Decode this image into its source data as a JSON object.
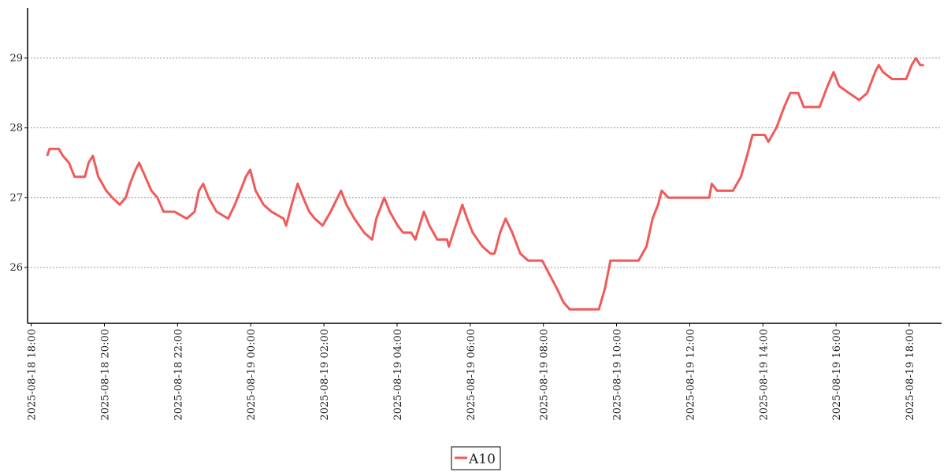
{
  "chart_data": {
    "type": "line",
    "x": [
      "2025-08-18 18:26",
      "2025-08-18 18:30",
      "2025-08-18 18:45",
      "2025-08-18 18:52",
      "2025-08-18 19:02",
      "2025-08-18 19:11",
      "2025-08-18 19:28",
      "2025-08-18 19:34",
      "2025-08-18 19:41",
      "2025-08-18 19:50",
      "2025-08-18 20:03",
      "2025-08-18 20:13",
      "2025-08-18 20:25",
      "2025-08-18 20:35",
      "2025-08-18 20:42",
      "2025-08-18 20:51",
      "2025-08-18 20:57",
      "2025-08-18 21:07",
      "2025-08-18 21:17",
      "2025-08-18 21:27",
      "2025-08-18 21:37",
      "2025-08-18 21:55",
      "2025-08-18 22:15",
      "2025-08-18 22:28",
      "2025-08-18 22:35",
      "2025-08-18 22:42",
      "2025-08-18 22:51",
      "2025-08-18 23:04",
      "2025-08-18 23:23",
      "2025-08-18 23:34",
      "2025-08-18 23:43",
      "2025-08-18 23:52",
      "2025-08-18 23:59",
      "2025-08-19 00:08",
      "2025-08-19 00:21",
      "2025-08-19 00:34",
      "2025-08-19 00:54",
      "2025-08-19 00:58",
      "2025-08-19 01:07",
      "2025-08-19 01:17",
      "2025-08-19 01:26",
      "2025-08-19 01:36",
      "2025-08-19 01:45",
      "2025-08-19 01:58",
      "2025-08-19 02:11",
      "2025-08-19 02:28",
      "2025-08-19 02:37",
      "2025-08-19 02:50",
      "2025-08-19 03:06",
      "2025-08-19 03:19",
      "2025-08-19 03:26",
      "2025-08-19 03:39",
      "2025-08-19 03:48",
      "2025-08-19 04:01",
      "2025-08-19 04:10",
      "2025-08-19 04:23",
      "2025-08-19 04:30",
      "2025-08-19 04:37",
      "2025-08-19 04:44",
      "2025-08-19 04:53",
      "2025-08-19 05:06",
      "2025-08-19 05:22",
      "2025-08-19 05:25",
      "2025-08-19 05:36",
      "2025-08-19 05:47",
      "2025-08-19 05:55",
      "2025-08-19 06:04",
      "2025-08-19 06:20",
      "2025-08-19 06:33",
      "2025-08-19 06:40",
      "2025-08-19 06:49",
      "2025-08-19 06:58",
      "2025-08-19 07:09",
      "2025-08-19 07:22",
      "2025-08-19 07:35",
      "2025-08-19 07:58",
      "2025-08-19 08:10",
      "2025-08-19 08:22",
      "2025-08-19 08:33",
      "2025-08-19 08:43",
      "2025-08-19 09:31",
      "2025-08-19 09:41",
      "2025-08-19 09:50",
      "2025-08-19 10:36",
      "2025-08-19 10:49",
      "2025-08-19 10:59",
      "2025-08-19 11:08",
      "2025-08-19 11:14",
      "2025-08-19 11:25",
      "2025-08-19 12:32",
      "2025-08-19 12:36",
      "2025-08-19 12:45",
      "2025-08-19 13:11",
      "2025-08-19 13:24",
      "2025-08-19 13:34",
      "2025-08-19 13:43",
      "2025-08-19 14:03",
      "2025-08-19 14:09",
      "2025-08-19 14:22",
      "2025-08-19 14:35",
      "2025-08-19 14:45",
      "2025-08-19 14:58",
      "2025-08-19 15:07",
      "2025-08-19 15:33",
      "2025-08-19 15:46",
      "2025-08-19 15:56",
      "2025-08-19 16:05",
      "2025-08-19 16:21",
      "2025-08-19 16:38",
      "2025-08-19 16:51",
      "2025-08-19 17:04",
      "2025-08-19 17:10",
      "2025-08-19 17:17",
      "2025-08-19 17:32",
      "2025-08-19 17:55",
      "2025-08-19 18:04",
      "2025-08-19 18:11",
      "2025-08-19 18:18",
      "2025-08-19 18:24"
    ],
    "series": [
      {
        "name": "A10",
        "color": "#f05a5a",
        "values": [
          27.6,
          27.7,
          27.7,
          27.6,
          27.5,
          27.3,
          27.3,
          27.5,
          27.6,
          27.3,
          27.1,
          27.0,
          26.9,
          27.0,
          27.2,
          27.4,
          27.5,
          27.3,
          27.1,
          27.0,
          26.8,
          26.8,
          26.7,
          26.8,
          27.1,
          27.2,
          27.0,
          26.8,
          26.7,
          26.9,
          27.1,
          27.3,
          27.4,
          27.1,
          26.9,
          26.8,
          26.7,
          26.6,
          26.9,
          27.2,
          27.0,
          26.8,
          26.7,
          26.6,
          26.8,
          27.1,
          26.9,
          26.7,
          26.5,
          26.4,
          26.7,
          27.0,
          26.8,
          26.6,
          26.5,
          26.5,
          26.4,
          26.6,
          26.8,
          26.6,
          26.4,
          26.4,
          26.3,
          26.6,
          26.9,
          26.7,
          26.5,
          26.3,
          26.2,
          26.2,
          26.5,
          26.7,
          26.5,
          26.2,
          26.1,
          26.1,
          25.9,
          25.7,
          25.5,
          25.4,
          25.4,
          25.7,
          26.1,
          26.1,
          26.3,
          26.7,
          26.9,
          27.1,
          27.0,
          27.0,
          27.2,
          27.1,
          27.1,
          27.3,
          27.6,
          27.9,
          27.9,
          27.8,
          28.0,
          28.3,
          28.5,
          28.5,
          28.3,
          28.3,
          28.6,
          28.8,
          28.6,
          28.5,
          28.4,
          28.5,
          28.8,
          28.9,
          28.8,
          28.7,
          28.7,
          28.9,
          29.0,
          28.9,
          28.9
        ]
      }
    ],
    "xlim": [
      "2025-08-18 17:54",
      "2025-08-19 18:53"
    ],
    "xticks": [
      "2025-08-18 18:00",
      "2025-08-18 20:00",
      "2025-08-18 22:00",
      "2025-08-19 00:00",
      "2025-08-19 02:00",
      "2025-08-19 04:00",
      "2025-08-19 06:00",
      "2025-08-19 08:00",
      "2025-08-19 10:00",
      "2025-08-19 12:00",
      "2025-08-19 14:00",
      "2025-08-19 16:00",
      "2025-08-19 18:00"
    ],
    "ylim": [
      25.2,
      29.72
    ],
    "yticks": [
      26,
      27,
      28,
      29
    ],
    "grid": true
  }
}
